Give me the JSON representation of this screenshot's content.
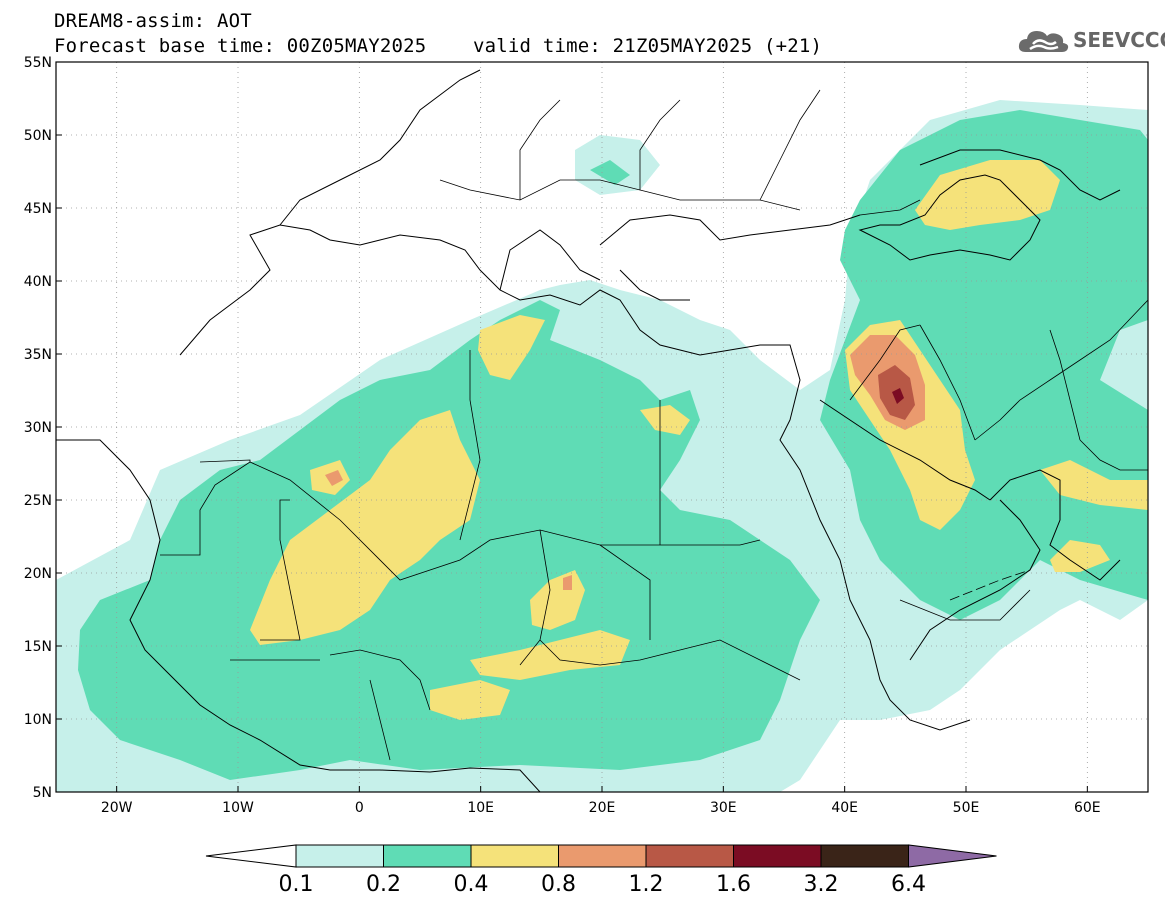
{
  "header": {
    "line1": "DREAM8-assim: AOT",
    "line2": "Forecast base time: 00Z05MAY2025    valid time: 21Z05MAY2025 (+21)"
  },
  "logo": {
    "text": "SEEVCCC",
    "icon": "cloud-icon",
    "color": "#666666"
  },
  "map": {
    "lon_range": [
      -25,
      65
    ],
    "lat_range": [
      5,
      55
    ],
    "lat_ticks": [
      {
        "value": 55,
        "label": "55N"
      },
      {
        "value": 50,
        "label": "50N"
      },
      {
        "value": 45,
        "label": "45N"
      },
      {
        "value": 40,
        "label": "40N"
      },
      {
        "value": 35,
        "label": "35N"
      },
      {
        "value": 30,
        "label": "30N"
      },
      {
        "value": 25,
        "label": "25N"
      },
      {
        "value": 20,
        "label": "20N"
      },
      {
        "value": 15,
        "label": "15N"
      },
      {
        "value": 10,
        "label": "10N"
      },
      {
        "value": 5,
        "label": "5N"
      }
    ],
    "lon_ticks": [
      {
        "value": -20,
        "label": "20W"
      },
      {
        "value": -10,
        "label": "10W"
      },
      {
        "value": 0,
        "label": "0"
      },
      {
        "value": 10,
        "label": "10E"
      },
      {
        "value": 20,
        "label": "20E"
      },
      {
        "value": 30,
        "label": "30E"
      },
      {
        "value": 40,
        "label": "40E"
      },
      {
        "value": 50,
        "label": "50E"
      },
      {
        "value": 60,
        "label": "60E"
      }
    ],
    "gridlines": "dotted"
  },
  "colorbar": {
    "levels": [
      "0.1",
      "0.2",
      "0.4",
      "0.8",
      "1.2",
      "1.6",
      "3.2",
      "6.4"
    ],
    "colors": [
      "#ffffff",
      "#c6f0ea",
      "#5fdcb5",
      "#f5e27a",
      "#ea9a6e",
      "#b85846",
      "#7b0c23",
      "#3a2418",
      "#8e6aa5"
    ]
  }
}
